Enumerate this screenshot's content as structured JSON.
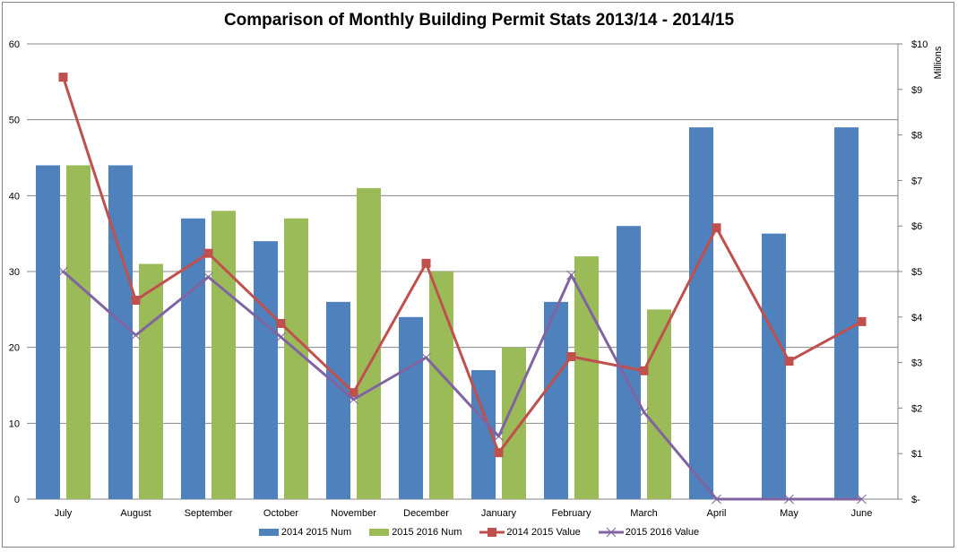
{
  "chart_data": {
    "type": "bar",
    "title": "Comparison of Monthly Building Permit Stats 2013/14 - 2014/15",
    "xlabel": "",
    "ylabel": "",
    "y2label": "Millions",
    "categories": [
      "July",
      "August",
      "September",
      "October",
      "November",
      "December",
      "January",
      "February",
      "March",
      "April",
      "May",
      "June"
    ],
    "ylim": [
      0,
      60
    ],
    "yticks": [
      "0",
      "10",
      "20",
      "30",
      "40",
      "50",
      "60"
    ],
    "y2lim": [
      0,
      10
    ],
    "y2ticks": [
      "$-",
      "$1",
      "$2",
      "$3",
      "$4",
      "$5",
      "$6",
      "$7",
      "$8",
      "$9",
      "$10"
    ],
    "grid": true,
    "legend_position": "bottom",
    "series": [
      {
        "name": "2014 2015 Num",
        "type": "bar",
        "axis": "left",
        "color": "#4f81bd",
        "values": [
          44,
          44,
          37,
          34,
          26,
          24,
          17,
          26,
          36,
          49,
          35,
          49
        ]
      },
      {
        "name": "2015 2016 Num",
        "type": "bar",
        "axis": "left",
        "color": "#9bbb59",
        "values": [
          44,
          31,
          38,
          37,
          41,
          30,
          20,
          32,
          25,
          null,
          null,
          null
        ]
      },
      {
        "name": "2014 2015 Value",
        "type": "line",
        "marker": "square",
        "axis": "right",
        "color": "#c0504d",
        "values": [
          9.27,
          4.37,
          5.4,
          3.86,
          2.34,
          5.18,
          1.02,
          3.13,
          2.82,
          5.96,
          3.03,
          3.9
        ]
      },
      {
        "name": "2015 2016 Value",
        "type": "line",
        "marker": "x",
        "axis": "right",
        "color": "#8064a2",
        "values": [
          5.0,
          3.6,
          4.88,
          3.56,
          2.19,
          3.11,
          1.38,
          4.92,
          1.91,
          0,
          0,
          0
        ]
      }
    ]
  }
}
